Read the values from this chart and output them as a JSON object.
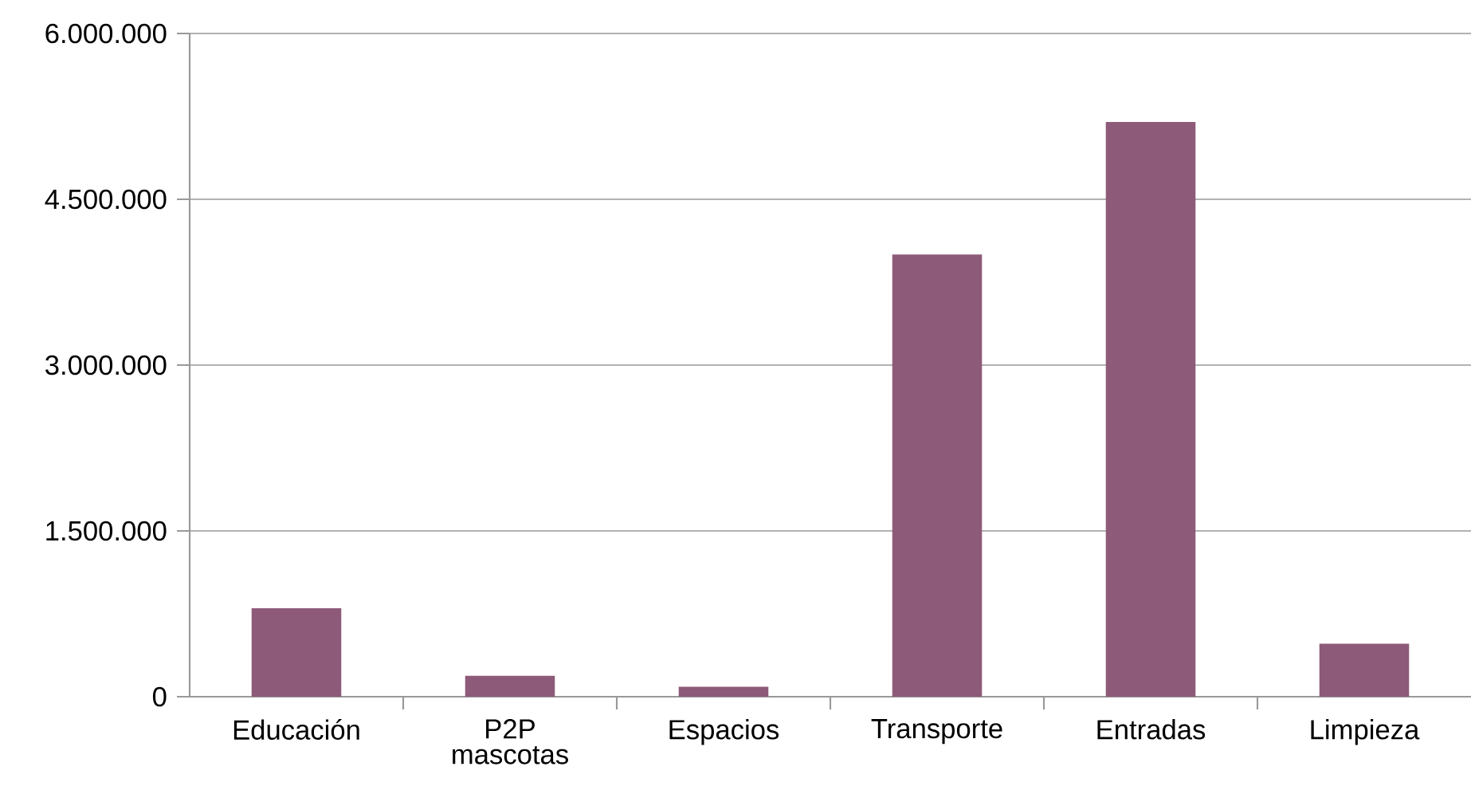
{
  "chart_data": {
    "type": "bar",
    "categories": [
      "Educación",
      "P2P mascotas",
      "Espacios",
      "Transporte",
      "Entradas",
      "Limpieza"
    ],
    "values": [
      800000,
      190000,
      90000,
      4000000,
      5200000,
      480000
    ],
    "color": "#8e5a79",
    "ylim": [
      0,
      6000000
    ],
    "yticks": [
      {
        "value": 0,
        "label": "0"
      },
      {
        "value": 1500000,
        "label": "1.500.000"
      },
      {
        "value": 3000000,
        "label": "3.000.000"
      },
      {
        "value": 4500000,
        "label": "4.500.000"
      },
      {
        "value": 6000000,
        "label": "6.000.000"
      }
    ],
    "grid": "y"
  }
}
